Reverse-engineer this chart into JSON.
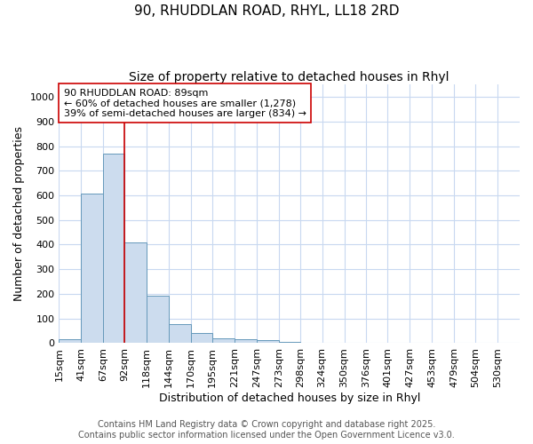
{
  "title_line1": "90, RHUDDLAN ROAD, RHYL, LL18 2RD",
  "title_line2": "Size of property relative to detached houses in Rhyl",
  "xlabel": "Distribution of detached houses by size in Rhyl",
  "ylabel": "Number of detached properties",
  "bar_color": "#ccdcee",
  "bar_edge_color": "#6699bb",
  "bin_labels": [
    "15sqm",
    "41sqm",
    "67sqm",
    "92sqm",
    "118sqm",
    "144sqm",
    "170sqm",
    "195sqm",
    "221sqm",
    "247sqm",
    "273sqm",
    "298sqm",
    "324sqm",
    "350sqm",
    "376sqm",
    "401sqm",
    "427sqm",
    "453sqm",
    "479sqm",
    "504sqm",
    "530sqm"
  ],
  "bin_edges": [
    15,
    41,
    67,
    92,
    118,
    144,
    170,
    195,
    221,
    247,
    273,
    298,
    324,
    350,
    376,
    401,
    427,
    453,
    479,
    504,
    530,
    556
  ],
  "bar_heights": [
    15,
    608,
    770,
    410,
    193,
    77,
    40,
    18,
    15,
    12,
    6,
    0,
    0,
    0,
    0,
    0,
    0,
    0,
    0,
    0,
    0
  ],
  "vline_x": 92,
  "vline_color": "#cc0000",
  "ylim": [
    0,
    1050
  ],
  "yticks": [
    0,
    100,
    200,
    300,
    400,
    500,
    600,
    700,
    800,
    900,
    1000
  ],
  "annotation_title": "90 RHUDDLAN ROAD: 89sqm",
  "annotation_line1": "← 60% of detached houses are smaller (1,278)",
  "annotation_line2": "39% of semi-detached houses are larger (834) →",
  "annotation_box_color": "#ffffff",
  "annotation_box_edgecolor": "#cc0000",
  "footer_line1": "Contains HM Land Registry data © Crown copyright and database right 2025.",
  "footer_line2": "Contains public sector information licensed under the Open Government Licence v3.0.",
  "background_color": "#ffffff",
  "grid_color": "#c8d8f0",
  "title_fontsize": 11,
  "subtitle_fontsize": 10,
  "axis_label_fontsize": 9,
  "tick_fontsize": 8,
  "annotation_fontsize": 8,
  "footer_fontsize": 7
}
